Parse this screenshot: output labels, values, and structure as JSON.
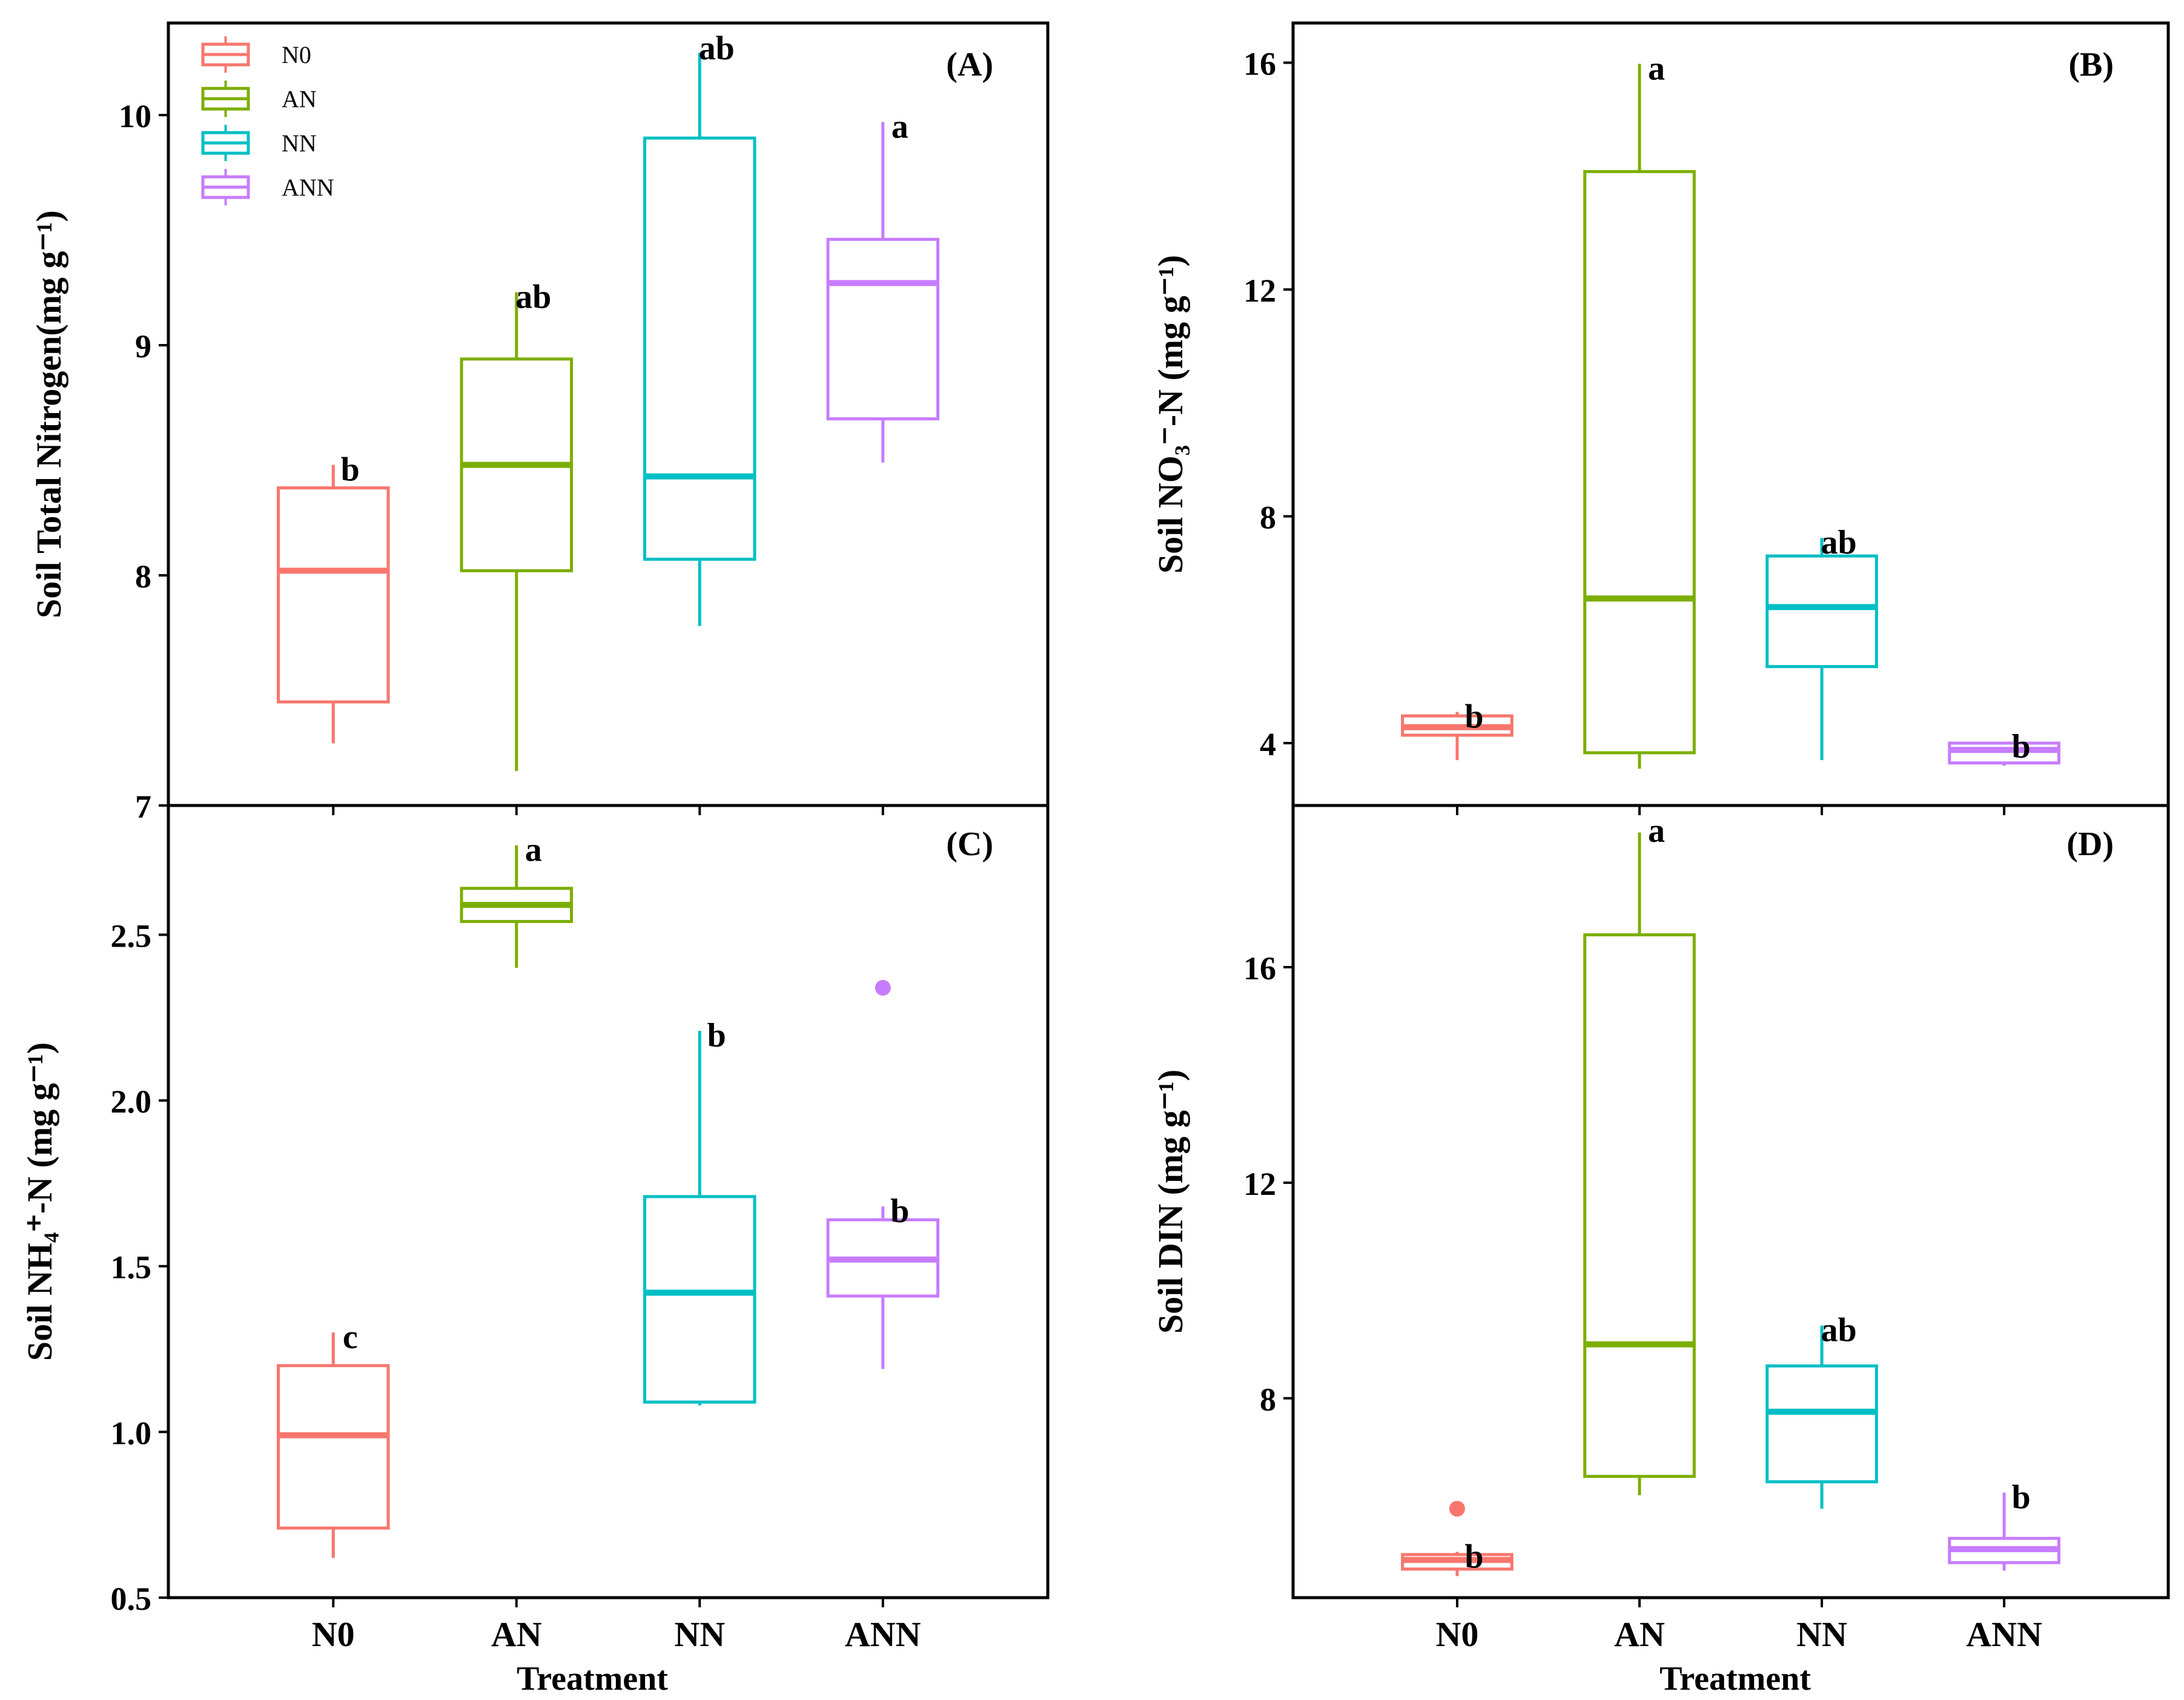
{
  "figure": {
    "x_axis_title": "Treatment",
    "legend": [
      {
        "label": "N0",
        "color": "#f8766d"
      },
      {
        "label": "AN",
        "color": "#7cae00"
      },
      {
        "label": "NN",
        "color": "#00bfc4"
      },
      {
        "label": "ANN",
        "color": "#c77cff"
      }
    ]
  },
  "chart_data": [
    {
      "panel": "(A)",
      "type": "box",
      "ylabel": "Soil Total Nitrogen(mg g⁻¹)",
      "ylim": [
        7,
        10.4
      ],
      "yticks": [
        "7",
        "8",
        "9",
        "10"
      ],
      "categories": [
        "N0",
        "AN",
        "NN",
        "ANN"
      ],
      "colors": [
        "#f8766d",
        "#7cae00",
        "#00bfc4",
        "#c77cff"
      ],
      "boxes": [
        {
          "category": "N0",
          "min": 7.27,
          "q1": 7.45,
          "median": 8.02,
          "q3": 8.38,
          "max": 8.48,
          "letter": "b",
          "outliers": []
        },
        {
          "category": "AN",
          "min": 7.15,
          "q1": 8.02,
          "median": 8.48,
          "q3": 8.94,
          "max": 9.23,
          "letter": "ab",
          "outliers": []
        },
        {
          "category": "NN",
          "min": 7.78,
          "q1": 8.07,
          "median": 8.43,
          "q3": 9.9,
          "max": 10.27,
          "letter": "ab",
          "outliers": []
        },
        {
          "category": "ANN",
          "min": 8.49,
          "q1": 8.68,
          "median": 9.27,
          "q3": 9.46,
          "max": 9.97,
          "letter": "a",
          "outliers": []
        }
      ]
    },
    {
      "panel": "(B)",
      "type": "box",
      "ylabel": "Soil NO₃⁻-N (mg g⁻¹)",
      "ylim": [
        2.9,
        16.7
      ],
      "yticks": [
        "4",
        "8",
        "12",
        "16"
      ],
      "categories": [
        "N0",
        "AN",
        "NN",
        "ANN"
      ],
      "colors": [
        "#f8766d",
        "#7cae00",
        "#00bfc4",
        "#c77cff"
      ],
      "boxes": [
        {
          "category": "N0",
          "min": 3.7,
          "q1": 4.14,
          "median": 4.28,
          "q3": 4.48,
          "max": 4.55,
          "letter": "b",
          "outliers": []
        },
        {
          "category": "AN",
          "min": 3.55,
          "q1": 3.83,
          "median": 6.55,
          "q3": 14.08,
          "max": 15.98,
          "letter": "a",
          "outliers": []
        },
        {
          "category": "NN",
          "min": 3.7,
          "q1": 5.35,
          "median": 6.4,
          "q3": 7.3,
          "max": 7.62,
          "letter": "ab",
          "outliers": []
        },
        {
          "category": "ANN",
          "min": 3.6,
          "q1": 3.65,
          "median": 3.88,
          "q3": 4.0,
          "max": 4.02,
          "letter": "b",
          "outliers": []
        }
      ]
    },
    {
      "panel": "(C)",
      "type": "box",
      "ylabel": "Soil NH₄⁺-N (mg g⁻¹)",
      "ylim": [
        0.5,
        2.89
      ],
      "yticks": [
        "0.5",
        "1.0",
        "1.5",
        "2.0",
        "2.5"
      ],
      "categories": [
        "N0",
        "AN",
        "NN",
        "ANN"
      ],
      "colors": [
        "#f8766d",
        "#7cae00",
        "#00bfc4",
        "#c77cff"
      ],
      "boxes": [
        {
          "category": "N0",
          "min": 0.62,
          "q1": 0.71,
          "median": 0.99,
          "q3": 1.2,
          "max": 1.3,
          "letter": "c",
          "outliers": []
        },
        {
          "category": "AN",
          "min": 2.4,
          "q1": 2.54,
          "median": 2.59,
          "q3": 2.64,
          "max": 2.77,
          "letter": "a",
          "outliers": []
        },
        {
          "category": "NN",
          "min": 1.08,
          "q1": 1.09,
          "median": 1.42,
          "q3": 1.71,
          "max": 2.21,
          "letter": "b",
          "outliers": []
        },
        {
          "category": "ANN",
          "min": 1.19,
          "q1": 1.41,
          "median": 1.52,
          "q3": 1.64,
          "max": 1.68,
          "letter": "b",
          "outliers": [
            2.34
          ]
        }
      ]
    },
    {
      "panel": "(D)",
      "type": "box",
      "ylabel": "Soil DIN (mg g⁻¹)",
      "ylim": [
        4.3,
        19.0
      ],
      "yticks": [
        "8",
        "12",
        "16"
      ],
      "categories": [
        "N0",
        "AN",
        "NN",
        "ANN"
      ],
      "colors": [
        "#f8766d",
        "#7cae00",
        "#00bfc4",
        "#c77cff"
      ],
      "boxes": [
        {
          "category": "N0",
          "min": 4.7,
          "q1": 4.83,
          "median": 5.0,
          "q3": 5.1,
          "max": 5.15,
          "letter": "b",
          "outliers": [
            5.95
          ]
        },
        {
          "category": "AN",
          "min": 6.2,
          "q1": 6.55,
          "median": 9.0,
          "q3": 16.6,
          "max": 18.5,
          "letter": "a",
          "outliers": []
        },
        {
          "category": "NN",
          "min": 5.95,
          "q1": 6.45,
          "median": 7.75,
          "q3": 8.6,
          "max": 9.35,
          "letter": "ab",
          "outliers": []
        },
        {
          "category": "ANN",
          "min": 4.8,
          "q1": 4.95,
          "median": 5.2,
          "q3": 5.4,
          "max": 6.25,
          "letter": "b",
          "outliers": []
        }
      ]
    }
  ]
}
